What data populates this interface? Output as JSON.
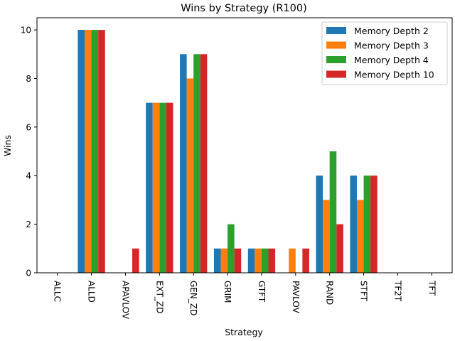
{
  "chart_data": {
    "type": "bar",
    "title": "Wins by Strategy (R100)",
    "xlabel": "Strategy",
    "ylabel": "Wins",
    "ylim": [
      0,
      10.5
    ],
    "yticks": [
      "0",
      "2",
      "4",
      "6",
      "8",
      "10"
    ],
    "ytick_values": [
      0,
      2,
      4,
      6,
      8,
      10
    ],
    "grid": false,
    "legend_position": "top-right",
    "categories": [
      "ALLC",
      "ALLD",
      "APAVLOV",
      "EXT_ZD",
      "GEN_ZD",
      "GRIM",
      "GTFT",
      "PAVLOV",
      "RAND",
      "STFT",
      "TF2T",
      "TFT"
    ],
    "series": [
      {
        "name": "Memory Depth 2",
        "color": "#1f77b4",
        "values": [
          0,
          10,
          0,
          7,
          9,
          1,
          1,
          0,
          4,
          4,
          0,
          0
        ]
      },
      {
        "name": "Memory Depth 3",
        "color": "#ff7f0e",
        "values": [
          0,
          10,
          0,
          7,
          8,
          1,
          1,
          1,
          3,
          3,
          0,
          0
        ]
      },
      {
        "name": "Memory Depth 4",
        "color": "#2ca02c",
        "values": [
          0,
          10,
          0,
          7,
          9,
          2,
          1,
          0,
          5,
          4,
          0,
          0
        ]
      },
      {
        "name": "Memory Depth 10",
        "color": "#d62728",
        "values": [
          0,
          10,
          1,
          7,
          9,
          1,
          1,
          1,
          2,
          4,
          0,
          0
        ]
      }
    ]
  }
}
